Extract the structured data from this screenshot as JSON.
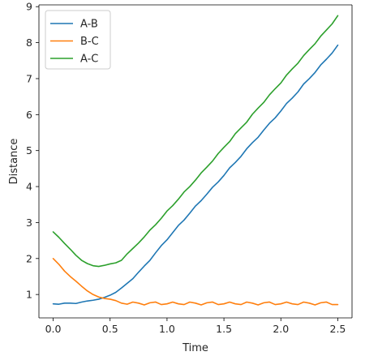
{
  "chart_data": {
    "type": "line",
    "title": "",
    "xlabel": "Time",
    "ylabel": "Distance",
    "xlim": [
      -0.125,
      2.625
    ],
    "ylim": [
      0.35,
      9.05
    ],
    "xticks": [
      0.0,
      0.5,
      1.0,
      1.5,
      2.0,
      2.5
    ],
    "xtick_labels": [
      "0.0",
      "0.5",
      "1.0",
      "1.5",
      "2.0",
      "2.5"
    ],
    "yticks": [
      1,
      2,
      3,
      4,
      5,
      6,
      7,
      8,
      9
    ],
    "ytick_labels": [
      "1",
      "2",
      "3",
      "4",
      "5",
      "6",
      "7",
      "8",
      "9"
    ],
    "grid": false,
    "legend": "top-left",
    "x": [
      0.0,
      0.05,
      0.1,
      0.15,
      0.2,
      0.25,
      0.3,
      0.35,
      0.4,
      0.45,
      0.5,
      0.55,
      0.6,
      0.65,
      0.7,
      0.75,
      0.8,
      0.85,
      0.9,
      0.95,
      1.0,
      1.05,
      1.1,
      1.15,
      1.2,
      1.25,
      1.3,
      1.35,
      1.4,
      1.45,
      1.5,
      1.55,
      1.6,
      1.65,
      1.7,
      1.75,
      1.8,
      1.85,
      1.9,
      1.95,
      2.0,
      2.05,
      2.1,
      2.15,
      2.2,
      2.25,
      2.3,
      2.35,
      2.4,
      2.45,
      2.5
    ],
    "series": [
      {
        "name": "A-B",
        "color": "#1f77b4",
        "values": [
          0.74,
          0.73,
          0.76,
          0.76,
          0.75,
          0.79,
          0.82,
          0.84,
          0.87,
          0.92,
          0.98,
          1.06,
          1.18,
          1.31,
          1.44,
          1.62,
          1.79,
          1.95,
          2.16,
          2.36,
          2.52,
          2.72,
          2.92,
          3.07,
          3.26,
          3.46,
          3.61,
          3.79,
          3.98,
          4.13,
          4.31,
          4.52,
          4.67,
          4.84,
          5.05,
          5.22,
          5.37,
          5.57,
          5.76,
          5.91,
          6.1,
          6.31,
          6.46,
          6.63,
          6.85,
          7.0,
          7.17,
          7.38,
          7.54,
          7.71,
          7.93
        ]
      },
      {
        "name": "B-C",
        "color": "#ff7f0e",
        "values": [
          2.0,
          1.84,
          1.65,
          1.5,
          1.37,
          1.23,
          1.1,
          1.0,
          0.93,
          0.89,
          0.87,
          0.83,
          0.76,
          0.73,
          0.79,
          0.76,
          0.71,
          0.77,
          0.79,
          0.72,
          0.74,
          0.79,
          0.74,
          0.72,
          0.79,
          0.76,
          0.71,
          0.77,
          0.79,
          0.72,
          0.74,
          0.79,
          0.74,
          0.72,
          0.79,
          0.76,
          0.71,
          0.77,
          0.79,
          0.72,
          0.74,
          0.79,
          0.74,
          0.72,
          0.79,
          0.76,
          0.71,
          0.77,
          0.79,
          0.72,
          0.72
        ]
      },
      {
        "name": "A-C",
        "color": "#2ca02c",
        "values": [
          2.74,
          2.59,
          2.42,
          2.26,
          2.09,
          1.95,
          1.86,
          1.8,
          1.78,
          1.81,
          1.85,
          1.88,
          1.95,
          2.13,
          2.28,
          2.43,
          2.6,
          2.79,
          2.94,
          3.12,
          3.32,
          3.47,
          3.65,
          3.85,
          4.0,
          4.18,
          4.38,
          4.54,
          4.71,
          4.92,
          5.09,
          5.25,
          5.47,
          5.63,
          5.79,
          6.01,
          6.18,
          6.34,
          6.55,
          6.72,
          6.88,
          7.1,
          7.27,
          7.43,
          7.64,
          7.81,
          7.97,
          8.18,
          8.35,
          8.52,
          8.75
        ]
      }
    ]
  }
}
